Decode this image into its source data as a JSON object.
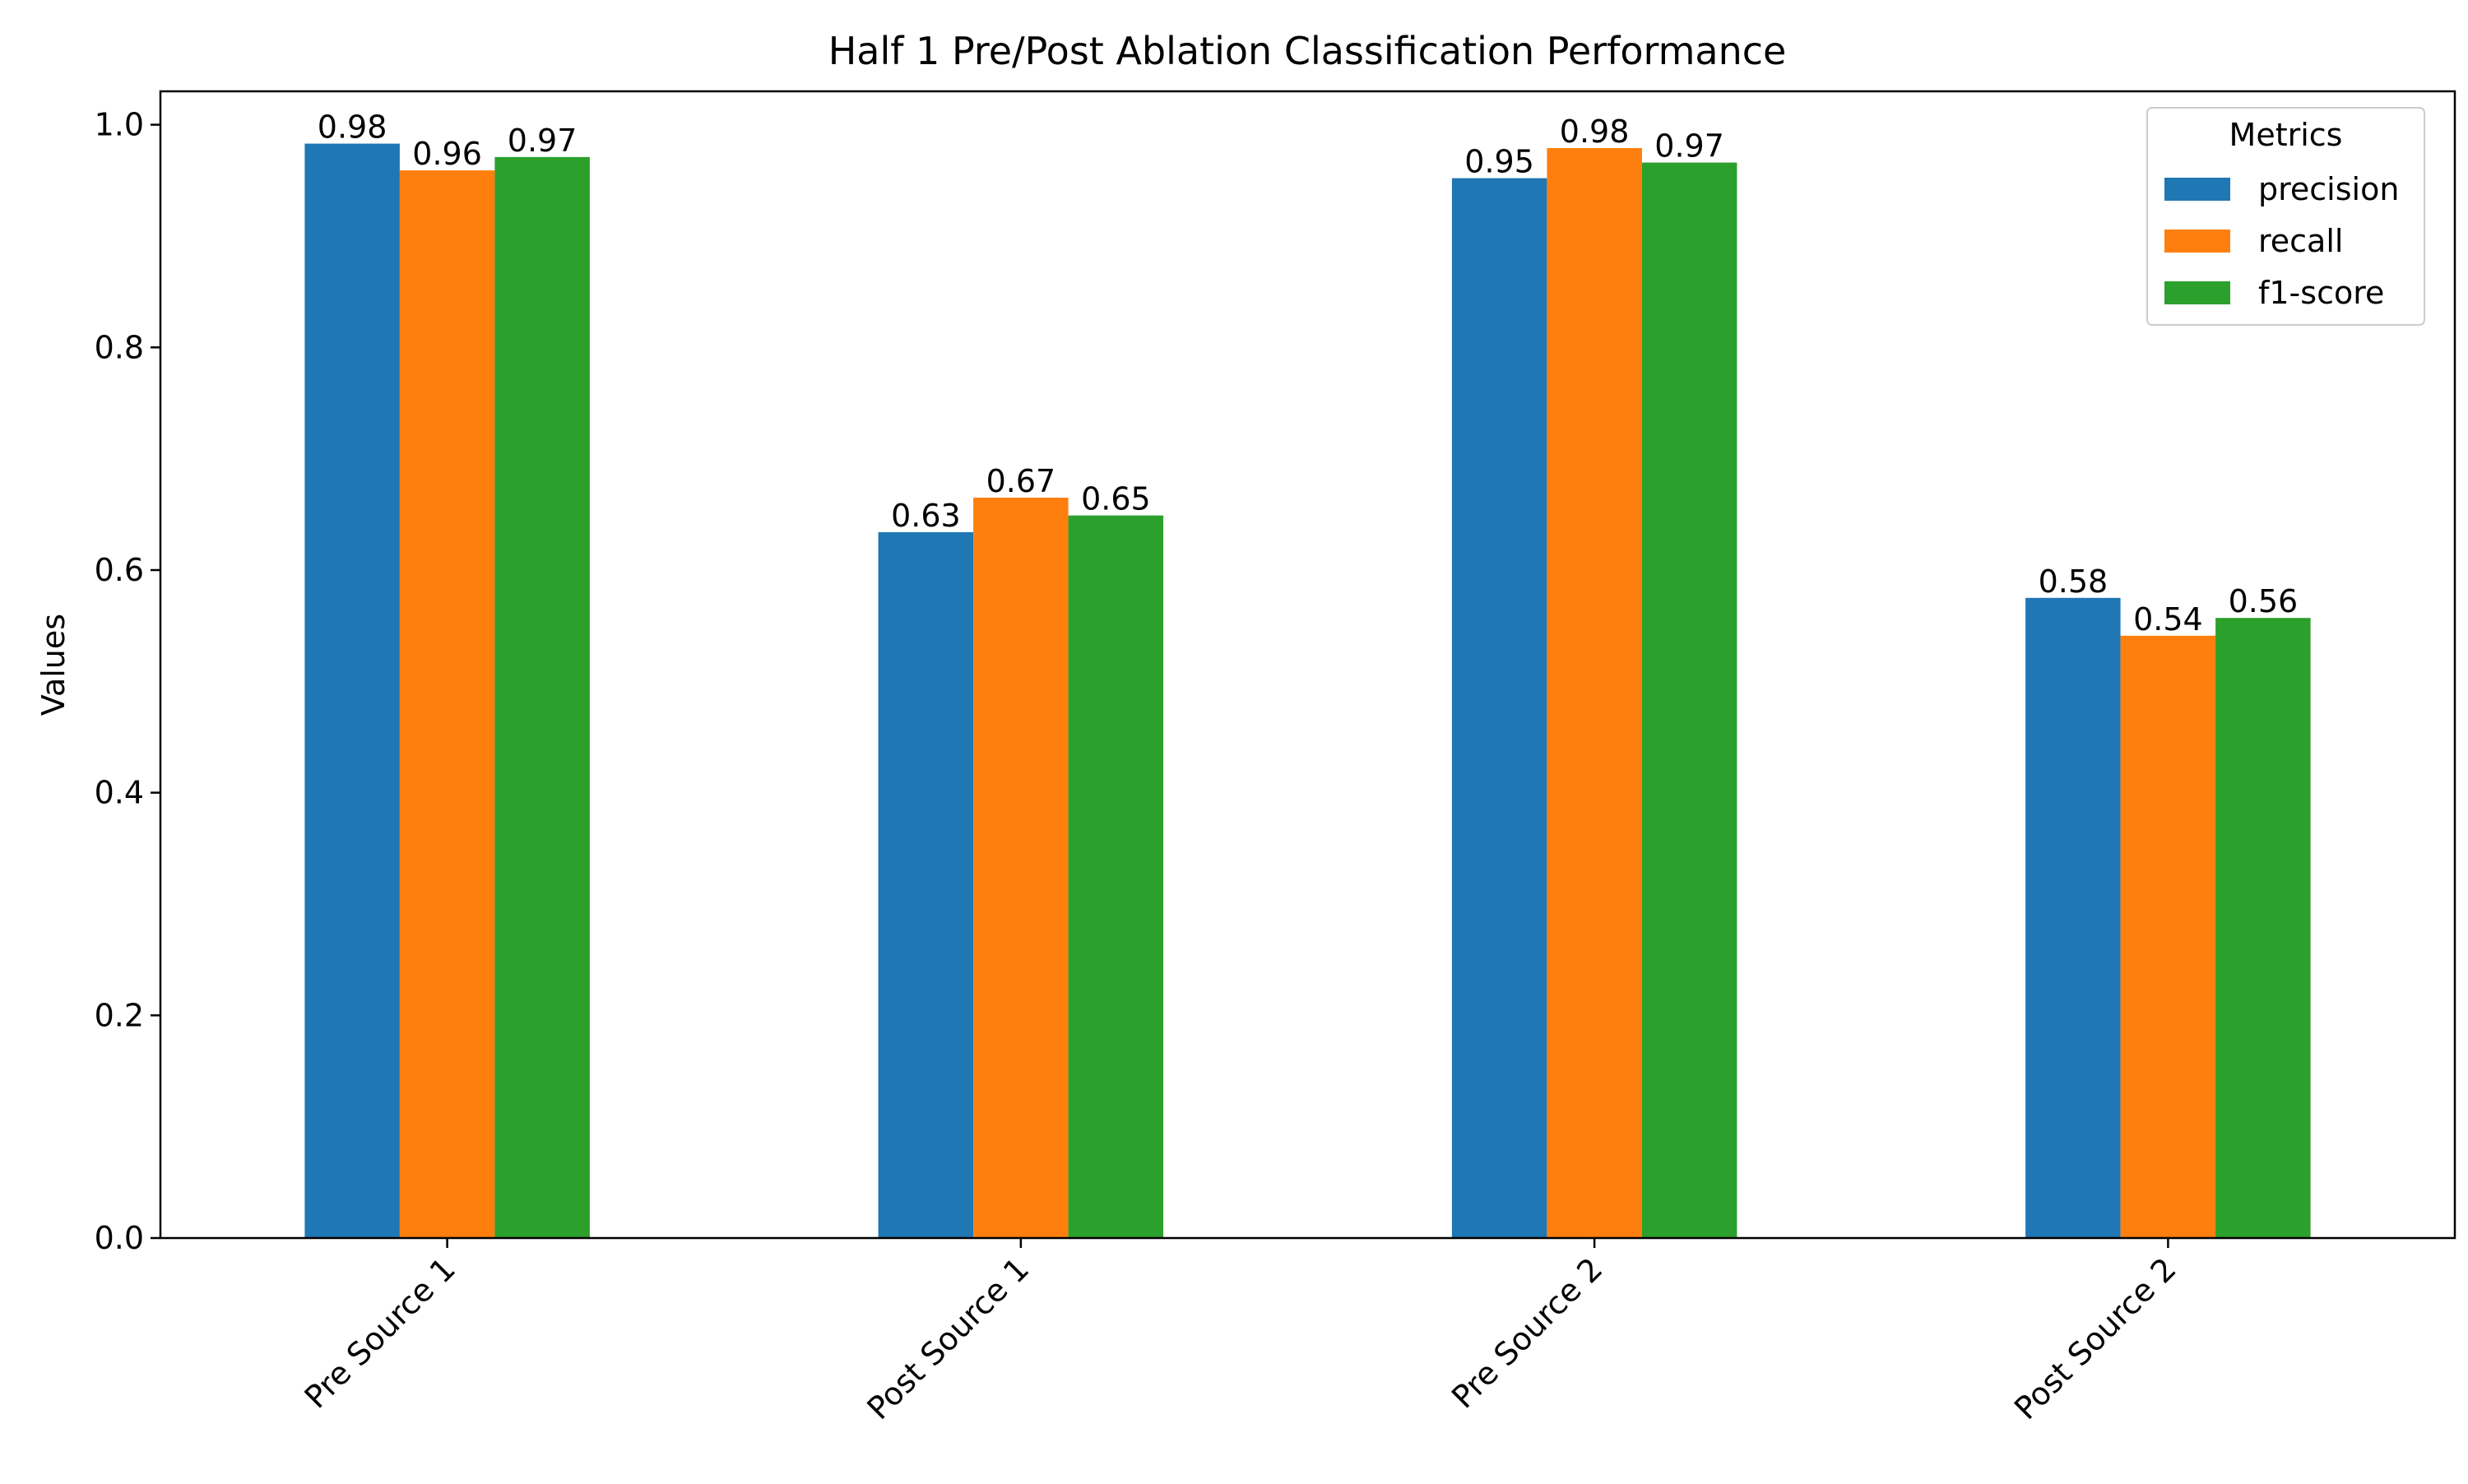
{
  "chart_data": {
    "type": "bar",
    "title": "Half 1 Pre/Post Ablation Classification Performance",
    "xlabel": "",
    "ylabel": "Values",
    "ylim": [
      0,
      1.03
    ],
    "yticks": [
      0.0,
      0.2,
      0.4,
      0.6,
      0.8,
      1.0
    ],
    "ytick_labels": [
      "0.0",
      "0.2",
      "0.4",
      "0.6",
      "0.8",
      "1.0"
    ],
    "categories": [
      "Pre Source 1",
      "Post Source 1",
      "Pre Source 2",
      "Post Source 2"
    ],
    "series": [
      {
        "name": "precision",
        "color": "#1f77b4",
        "values": [
          0.983,
          0.634,
          0.952,
          0.575
        ],
        "labels": [
          "0.98",
          "0.63",
          "0.95",
          "0.58"
        ]
      },
      {
        "name": "recall",
        "color": "#ff7f0e",
        "values": [
          0.959,
          0.665,
          0.979,
          0.541
        ],
        "labels": [
          "0.96",
          "0.67",
          "0.98",
          "0.54"
        ]
      },
      {
        "name": "f1-score",
        "color": "#2ca02c",
        "values": [
          0.971,
          0.649,
          0.966,
          0.557
        ],
        "labels": [
          "0.97",
          "0.65",
          "0.97",
          "0.56"
        ]
      }
    ],
    "legend": {
      "title": "Metrics",
      "placement": "top-right"
    },
    "grid": false
  }
}
